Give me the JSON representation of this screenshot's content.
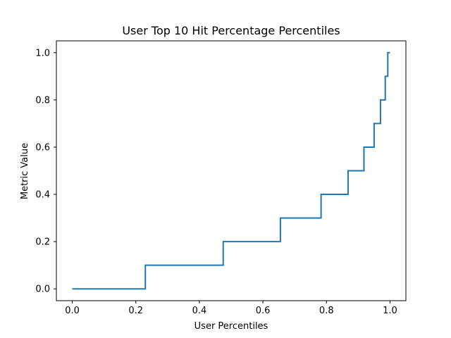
{
  "chart_data": {
    "type": "line",
    "title": "User Top 10 Hit Percentage Percentiles",
    "xlabel": "User Percentiles",
    "ylabel": "Metric Value",
    "xlim": [
      -0.05,
      1.05
    ],
    "ylim": [
      -0.05,
      1.05
    ],
    "x_ticks": [
      0.0,
      0.2,
      0.4,
      0.6,
      0.8,
      1.0
    ],
    "x_tick_labels": [
      "0.0",
      "0.2",
      "0.4",
      "0.6",
      "0.8",
      "1.0"
    ],
    "y_ticks": [
      0.0,
      0.2,
      0.4,
      0.6,
      0.8,
      1.0
    ],
    "y_tick_labels": [
      "0.0",
      "0.2",
      "0.4",
      "0.6",
      "0.8",
      "1.0"
    ],
    "grid": false,
    "legend": false,
    "series_color": "#1f77b4",
    "series": [
      {
        "drawstyle": "steps-post",
        "x": [
          0.0,
          0.23,
          0.475,
          0.655,
          0.783,
          0.868,
          0.918,
          0.95,
          0.97,
          0.985,
          0.993,
          1.0
        ],
        "y": [
          0.0,
          0.1,
          0.2,
          0.3,
          0.4,
          0.5,
          0.6,
          0.7,
          0.8,
          0.9,
          1.0,
          1.0
        ]
      }
    ]
  }
}
